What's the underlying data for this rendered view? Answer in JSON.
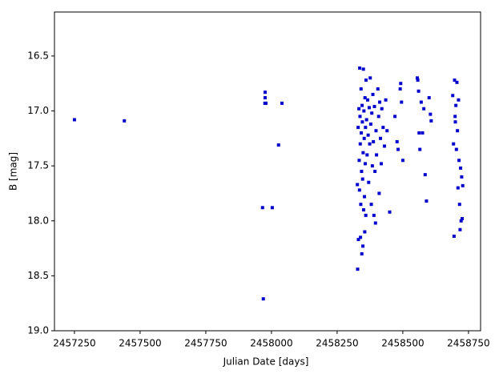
{
  "chart_data": {
    "type": "scatter",
    "xlabel": "Julian Date [days]",
    "ylabel": "B [mag]",
    "xlim": [
      2457174,
      2458796
    ],
    "ylim": [
      19.0,
      16.1
    ],
    "y_inverted": true,
    "xticks": [
      2457250,
      2457500,
      2457750,
      2458000,
      2458250,
      2458500,
      2458750
    ],
    "yticks": [
      16.5,
      {
        "value": 17.0,
        "label": "17.0"
      },
      17.5,
      {
        "value": 18.0,
        "label": "18.0"
      },
      18.5,
      {
        "value": 19.0,
        "label": "19.0"
      }
    ],
    "color": "#0000cc",
    "grid": false,
    "x": [
      2457250,
      2457440,
      2457976,
      2457976,
      2457975,
      2457979,
      2458040,
      2458027,
      2457966,
      2458003,
      2457969,
      2458327,
      2458328,
      2458330,
      2458331,
      2458333,
      2458334,
      2458335,
      2458336,
      2458337,
      2458338,
      2458339,
      2458340,
      2458341,
      2458342,
      2458343,
      2458344,
      2458345,
      2458346,
      2458347,
      2458348,
      2458349,
      2458350,
      2458351,
      2458352,
      2458353,
      2458354,
      2458355,
      2458356,
      2458357,
      2458358,
      2458359,
      2458360,
      2458362,
      2458364,
      2458366,
      2458368,
      2458370,
      2458372,
      2458374,
      2458376,
      2458378,
      2458380,
      2458382,
      2458384,
      2458386,
      2458388,
      2458390,
      2458392,
      2458394,
      2458396,
      2458398,
      2458400,
      2458405,
      2458408,
      2458410,
      2458412,
      2458415,
      2458418,
      2458420,
      2458425,
      2458430,
      2458435,
      2458440,
      2458450,
      2458470,
      2458478,
      2458482,
      2458490,
      2458492,
      2458495,
      2458500,
      2458555,
      2458557,
      2458560,
      2458562,
      2458565,
      2458570,
      2458575,
      2458580,
      2458585,
      2458590,
      2458600,
      2458605,
      2458608,
      2458690,
      2458693,
      2458695,
      2458697,
      2458699,
      2458700,
      2458702,
      2458704,
      2458706,
      2458708,
      2458710,
      2458712,
      2458714,
      2458716,
      2458718,
      2458720,
      2458722,
      2458724,
      2458726,
      2458728
    ],
    "values": [
      17.08,
      17.09,
      16.83,
      16.88,
      16.93,
      16.93,
      16.93,
      17.31,
      17.88,
      17.88,
      18.71,
      17.67,
      18.44,
      17.15,
      18.17,
      16.98,
      17.45,
      17.72,
      16.61,
      17.05,
      17.3,
      18.15,
      17.85,
      16.8,
      17.2,
      17.55,
      18.3,
      16.95,
      17.1,
      17.62,
      18.23,
      17.38,
      16.62,
      17.9,
      17.0,
      17.25,
      17.78,
      18.1,
      16.88,
      17.48,
      17.15,
      17.95,
      16.72,
      17.08,
      17.4,
      16.9,
      17.22,
      17.65,
      16.97,
      17.3,
      16.7,
      17.12,
      17.85,
      17.02,
      17.5,
      16.85,
      17.28,
      17.95,
      16.96,
      17.55,
      18.02,
      17.18,
      17.4,
      16.8,
      17.05,
      17.75,
      16.92,
      17.25,
      17.48,
      16.98,
      17.15,
      17.32,
      16.9,
      17.18,
      17.92,
      17.05,
      17.28,
      17.35,
      16.8,
      16.75,
      16.92,
      17.45,
      16.7,
      16.72,
      16.82,
      17.2,
      17.35,
      16.92,
      17.2,
      16.98,
      17.58,
      17.82,
      16.88,
      17.03,
      17.09,
      16.86,
      17.3,
      18.14,
      16.72,
      17.05,
      17.1,
      16.95,
      17.35,
      16.74,
      17.18,
      17.7,
      16.9,
      17.45,
      17.85,
      18.08,
      17.52,
      18.0,
      17.6,
      17.98,
      17.68
    ]
  }
}
